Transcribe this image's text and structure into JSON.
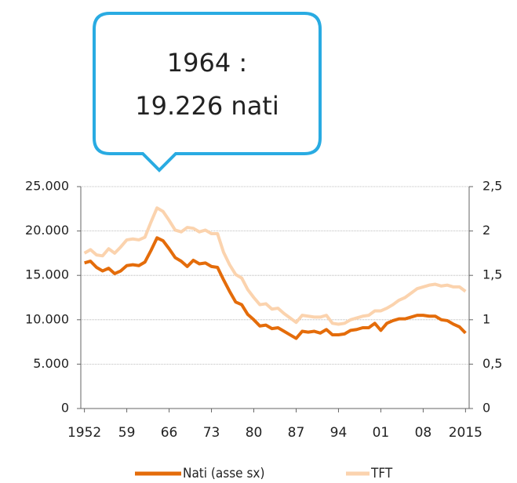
{
  "chart_data": {
    "type": "line",
    "annotation": [
      "1964 :",
      "19.226 nati"
    ],
    "x": [
      1952,
      1953,
      1954,
      1955,
      1956,
      1957,
      1958,
      1959,
      1960,
      1961,
      1962,
      1963,
      1964,
      1965,
      1966,
      1967,
      1968,
      1969,
      1970,
      1971,
      1972,
      1973,
      1974,
      1975,
      1976,
      1977,
      1978,
      1979,
      1980,
      1981,
      1982,
      1983,
      1984,
      1985,
      1986,
      1987,
      1988,
      1989,
      1990,
      1991,
      1992,
      1993,
      1994,
      1995,
      1996,
      1997,
      1998,
      1999,
      2000,
      2001,
      2002,
      2003,
      2004,
      2005,
      2006,
      2007,
      2008,
      2009,
      2010,
      2011,
      2012,
      2013,
      2014,
      2015
    ],
    "series": [
      {
        "name": "Nati (asse sx)",
        "color": "#e46c0a",
        "values": [
          16400,
          16600,
          15900,
          15500,
          15800,
          15200,
          15500,
          16100,
          16200,
          16100,
          16500,
          17800,
          19226,
          18900,
          18000,
          17000,
          16600,
          16000,
          16700,
          16300,
          16400,
          16000,
          15900,
          14500,
          13200,
          12000,
          11700,
          10600,
          10000,
          9300,
          9400,
          9000,
          9100,
          8700,
          8300,
          7900,
          8700,
          8600,
          8700,
          8500,
          8900,
          8300,
          8300,
          8400,
          8800,
          8900,
          9100,
          9100,
          9600,
          8800,
          9600,
          9900,
          10100,
          10100,
          10300,
          10500,
          10500,
          10400,
          10400,
          10000,
          9900,
          9500,
          9200,
          8500
        ]
      },
      {
        "name": "TFT",
        "color": "#fbd3ae",
        "axis": "y2",
        "values": [
          1.75,
          1.79,
          1.73,
          1.72,
          1.8,
          1.75,
          1.82,
          1.9,
          1.91,
          1.9,
          1.93,
          2.1,
          2.26,
          2.22,
          2.12,
          2.01,
          1.99,
          2.04,
          2.03,
          1.99,
          2.01,
          1.97,
          1.97,
          1.76,
          1.62,
          1.51,
          1.47,
          1.34,
          1.25,
          1.17,
          1.18,
          1.12,
          1.13,
          1.07,
          1.02,
          0.97,
          1.05,
          1.04,
          1.03,
          1.03,
          1.05,
          0.96,
          0.95,
          0.96,
          1.0,
          1.02,
          1.04,
          1.05,
          1.1,
          1.1,
          1.13,
          1.17,
          1.22,
          1.25,
          1.3,
          1.35,
          1.37,
          1.39,
          1.4,
          1.38,
          1.39,
          1.37,
          1.37,
          1.32
        ]
      }
    ],
    "xlim": [
      1951.4,
      2015.6
    ],
    "xticks": [
      1952,
      {
        "value": 1959,
        "label": "59"
      },
      {
        "value": 1966,
        "label": "66"
      },
      {
        "value": 1973,
        "label": "73"
      },
      {
        "value": 1980,
        "label": "80"
      },
      {
        "value": 1987,
        "label": "87"
      },
      {
        "value": 1994,
        "label": "94"
      },
      {
        "value": 2001,
        "label": "01"
      },
      {
        "value": 2008,
        "label": "08"
      },
      2015
    ],
    "ylim": [
      0,
      25000
    ],
    "yticks": [
      0,
      {
        "value": 5000,
        "label": "5.000"
      },
      {
        "value": 10000,
        "label": "10.000"
      },
      {
        "value": 15000,
        "label": "15.000"
      },
      {
        "value": 20000,
        "label": "20.000"
      },
      {
        "value": 25000,
        "label": "25.000"
      }
    ],
    "y2lim": [
      0,
      2.5
    ],
    "y2ticks": [
      0,
      {
        "value": 0.5,
        "label": "0,5"
      },
      1,
      {
        "value": 1.5,
        "label": "1,5"
      },
      2,
      {
        "value": 2.5,
        "label": "2,5"
      }
    ],
    "grid": true,
    "legend": "bottom"
  }
}
